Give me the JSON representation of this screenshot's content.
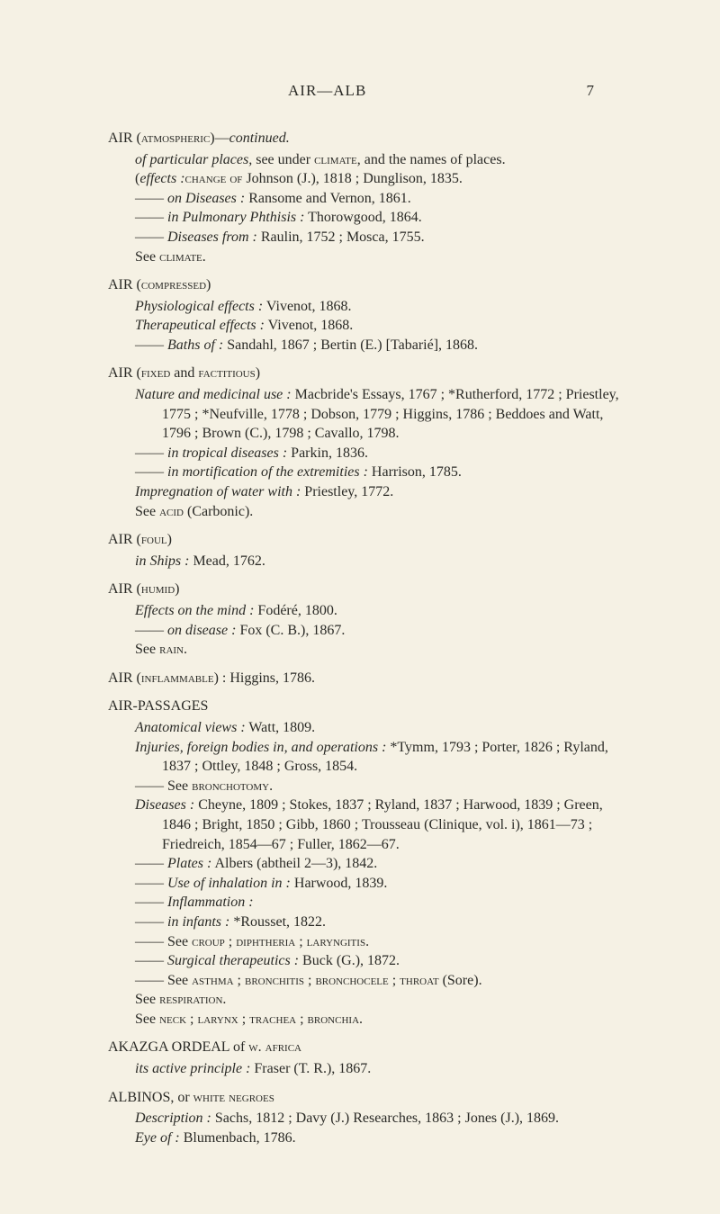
{
  "header": {
    "title": "AIR—ALB",
    "pageNumber": "7"
  },
  "entries": [
    {
      "head": {
        "pre": "AIR (",
        "sc": "atmospheric",
        "post": ")—",
        "ital": "continued.",
        "tail": ""
      },
      "lines": [
        {
          "indent": "sub",
          "ital": "of particular places,",
          "text": " see under ",
          "sc": "climate",
          "tail": ", and the names of places."
        },
        {
          "indent": "sub",
          "pre": "(",
          "sc": "change of",
          "post": ") ",
          "ital": "effects :",
          "tail": " Johnson (J.), 1818 ; Dunglison, 1835."
        },
        {
          "indent": "sub",
          "pre": "—— ",
          "ital": "on Diseases :",
          "tail": " Ransome and Vernon, 1861."
        },
        {
          "indent": "sub",
          "pre": "—— ",
          "ital": "in Pulmonary Phthisis :",
          "tail": " Thorowgood, 1864."
        },
        {
          "indent": "sub",
          "pre": "—— ",
          "ital": "Diseases from :",
          "tail": " Raulin, 1752 ; Mosca, 1755."
        },
        {
          "indent": "see",
          "pre": "See ",
          "sc": "climate",
          "tail": "."
        }
      ]
    },
    {
      "head": {
        "pre": "AIR (",
        "sc": "compressed",
        "post": ")",
        "ital": "",
        "tail": ""
      },
      "lines": [
        {
          "indent": "sub",
          "ital": "Physiological effects :",
          "tail": " Vivenot, 1868."
        },
        {
          "indent": "sub",
          "ital": "Therapeutical effects :",
          "tail": " Vivenot, 1868."
        },
        {
          "indent": "sub",
          "pre": "—— ",
          "ital": "Baths of :",
          "tail": " Sandahl, 1867 ; Bertin (E.) [Tabarié], 1868."
        }
      ]
    },
    {
      "head": {
        "pre": "AIR (",
        "sc": "fixed",
        "post": " and ",
        "sc2": "factitious",
        "post2": ")",
        "ital": "",
        "tail": ""
      },
      "lines": [
        {
          "indent": "sub",
          "ital": "Nature and medicinal use :",
          "tail": " Macbride's Essays, 1767 ; *Rutherford, 1772 ; Priestley, 1775 ; *Neufville, 1778 ; Dobson, 1779 ; Higgins, 1786 ; Beddoes and Watt, 1796 ; Brown (C.), 1798 ; Cavallo, 1798."
        },
        {
          "indent": "sub",
          "pre": "—— ",
          "ital": "in tropical diseases :",
          "tail": " Parkin, 1836."
        },
        {
          "indent": "sub",
          "pre": "—— ",
          "ital": "in mortification of the extremities :",
          "tail": " Harrison, 1785."
        },
        {
          "indent": "sub",
          "ital": "Impregnation of water with :",
          "tail": " Priestley, 1772."
        },
        {
          "indent": "see",
          "pre": "See ",
          "sc": "acid",
          "tail": " (Carbonic)."
        }
      ]
    },
    {
      "head": {
        "pre": "AIR (",
        "sc": "foul",
        "post": ")",
        "ital": "",
        "tail": ""
      },
      "lines": [
        {
          "indent": "sub",
          "ital": "in Ships :",
          "tail": " Mead, 1762."
        }
      ]
    },
    {
      "head": {
        "pre": "AIR (",
        "sc": "humid",
        "post": ")",
        "ital": "",
        "tail": ""
      },
      "lines": [
        {
          "indent": "sub",
          "ital": "Effects on the mind :",
          "tail": " Fodéré, 1800."
        },
        {
          "indent": "sub",
          "pre": "—— ",
          "ital": "on disease :",
          "tail": " Fox (C. B.), 1867."
        },
        {
          "indent": "see",
          "pre": "See ",
          "sc": "rain",
          "tail": "."
        }
      ]
    },
    {
      "head": {
        "pre": "AIR (",
        "sc": "inflammable",
        "post": ") : Higgins, 1786.",
        "ital": "",
        "tail": ""
      },
      "lines": []
    },
    {
      "head": {
        "pre": "AIR-PASSAGES",
        "sc": "",
        "post": "",
        "ital": "",
        "tail": ""
      },
      "lines": [
        {
          "indent": "sub",
          "ital": "Anatomical views :",
          "tail": " Watt, 1809."
        },
        {
          "indent": "sub",
          "ital": "Injuries, foreign bodies in, and operations :",
          "tail": " *Tymm, 1793 ; Porter, 1826 ; Ryland, 1837 ; Ottley, 1848 ; Gross, 1854."
        },
        {
          "indent": "sub",
          "pre": "—— See ",
          "sc": "bronchotomy",
          "tail": "."
        },
        {
          "indent": "sub",
          "ital": "Diseases :",
          "tail": " Cheyne, 1809 ; Stokes, 1837 ; Ryland, 1837 ; Harwood, 1839 ; Green, 1846 ; Bright, 1850 ; Gibb, 1860 ; Trousseau (Clinique, vol. i), 1861—73 ; Friedreich, 1854—67 ; Fuller, 1862—67."
        },
        {
          "indent": "sub",
          "pre": "—— ",
          "ital": "Plates :",
          "tail": " Albers (abtheil 2—3), 1842."
        },
        {
          "indent": "sub",
          "pre": "—— ",
          "ital": "Use of inhalation in :",
          "tail": " Harwood, 1839."
        },
        {
          "indent": "sub",
          "pre": "—— ",
          "ital": "Inflammation :",
          "tail": ""
        },
        {
          "indent": "sub",
          "pre": "—— ",
          "ital": "in infants :",
          "tail": " *Rousset, 1822."
        },
        {
          "indent": "sub",
          "pre": "—— See ",
          "sc": "croup ; diphtheria ; laryngitis",
          "tail": "."
        },
        {
          "indent": "sub",
          "pre": "—— ",
          "ital": "Surgical therapeutics :",
          "tail": " Buck (G.), 1872."
        },
        {
          "indent": "sub",
          "pre": "—— See ",
          "sc": "asthma ; bronchitis ; bronchocele ; throat",
          "tail": " (Sore)."
        },
        {
          "indent": "see",
          "pre": "See ",
          "sc": "respiration",
          "tail": "."
        },
        {
          "indent": "see",
          "pre": "See ",
          "sc": "neck ; larynx ; trachea ; bronchia",
          "tail": "."
        }
      ]
    },
    {
      "head": {
        "pre": "AKAZGA ORDEAL of ",
        "sc": "w. africa",
        "post": "",
        "ital": "",
        "tail": ""
      },
      "lines": [
        {
          "indent": "sub",
          "ital": "its active principle :",
          "tail": " Fraser (T. R.), 1867."
        }
      ]
    },
    {
      "head": {
        "pre": "ALBINOS, or ",
        "sc": "white negroes",
        "post": "",
        "ital": "",
        "tail": ""
      },
      "lines": [
        {
          "indent": "sub",
          "ital": "Description :",
          "tail": " Sachs, 1812 ; Davy (J.) Researches, 1863 ; Jones (J.), 1869."
        },
        {
          "indent": "sub",
          "ital": "Eye of :",
          "tail": " Blumenbach, 1786."
        }
      ]
    }
  ]
}
